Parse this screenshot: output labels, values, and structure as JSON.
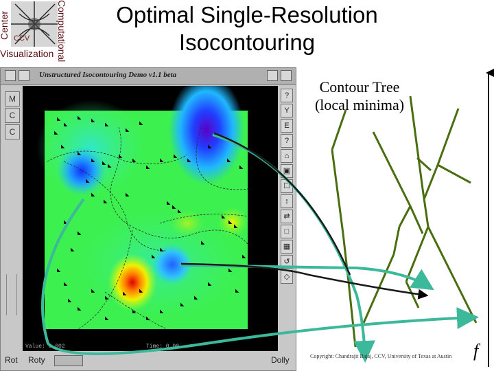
{
  "logo": {
    "left_text": "Center",
    "right_text": "Computational",
    "bottom_text": "Visualization",
    "mid_text": "CCV"
  },
  "slide": {
    "title_line1": "Optimal Single-Resolution",
    "title_line2": "Isocontouring"
  },
  "app": {
    "window_title": "Unstructured Isocontouring Demo v1.1 beta",
    "left_buttons": [
      "M",
      "C",
      "C"
    ],
    "right_buttons": [
      "?",
      "Y",
      "E",
      "?",
      "⌂",
      "▣",
      "☐",
      "↕",
      "⇄",
      "□",
      "▦",
      "↺",
      "◇"
    ],
    "value_readout": "Value: 0.002",
    "time_readout": "Time: 0.00",
    "rotate_label": "Rot",
    "roty_label": "Roty",
    "dolly_label": "Dolly"
  },
  "contour_tree": {
    "label_line1": "Contour Tree",
    "label_line2": "(local minima)",
    "axis_label": "f"
  },
  "footer": {
    "copyright": "Copyright: Chandrajit Bajaj, CCV, University of Texas at Austin"
  },
  "colors": {
    "logo_red": "#5a0e12",
    "arrow_green": "#3cb89a",
    "arrow_dark": "#1a1a1a",
    "tree_green": "#4a6d10"
  }
}
